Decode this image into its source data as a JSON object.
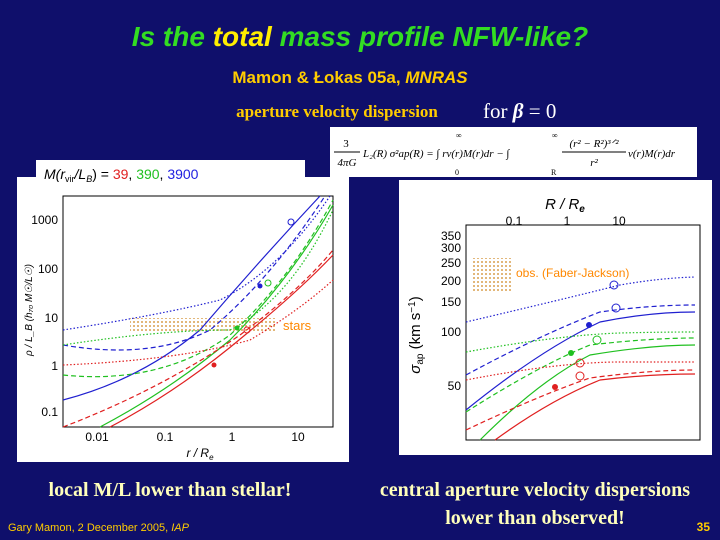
{
  "title": {
    "pre": "Is the ",
    "em": "total",
    "post": " mass profile NFW-like?"
  },
  "authors": {
    "text": "Mamon & Łokas 05a, ",
    "journal": "MNRAS"
  },
  "aperture_label": "aperture velocity dispersion",
  "beta_label": {
    "for": "for ",
    "beta": "β",
    "eq": " = 0"
  },
  "equation": {
    "num": "3",
    "den": "4πG",
    "lhs": "L₂(R) σ²ap(R) = ∫ rν(r)M(r)dr − ∫",
    "lim1_top": "∞",
    "lim1_bot": "0",
    "lim2_top": "∞",
    "lim2_bot": "R",
    "frac_num": "(r² − R²)³ᐟ²",
    "frac_den": "r²",
    "rhs": "ν(r)M(r)dr"
  },
  "left_plot": {
    "legend": {
      "m": "M(r",
      "vir": "vir",
      "l": "/L",
      "b": "B",
      "eq": ") = ",
      "v1": "39",
      "sep1": ", ",
      "v2": "390",
      "sep2": ", ",
      "v3": "3900"
    },
    "y_ticks": [
      "1000",
      "100",
      "10",
      "1",
      "0.1"
    ],
    "x_ticks": [
      "0.01",
      "0.1",
      "1",
      "10"
    ],
    "x_label": {
      "text": "r / R",
      "sub": "e"
    },
    "y_label": "ρ / L_B  (h₇₀ M☉/L☉)",
    "annotation": "stars"
  },
  "right_plot": {
    "top_label": {
      "text": "R / R",
      "sub": "e"
    },
    "top_ticks": [
      "0.1",
      "1",
      "10"
    ],
    "y_ticks": [
      "350",
      "300",
      "250",
      "200",
      "150",
      "100",
      "50"
    ],
    "y_label": {
      "sigma": "σ",
      "sub": "ap",
      "unit": " (km s",
      "exp": "−1",
      "close": ")"
    },
    "annotation": "obs. (Faber-Jackson)"
  },
  "captions": {
    "left": "local M/L lower than stellar!",
    "right_1": "central aperture velocity dispersions",
    "right_2": "lower than observed!"
  },
  "footer": {
    "text": "Gary Mamon, 2 December 2005, ",
    "venue": "IAP",
    "page": "35"
  }
}
